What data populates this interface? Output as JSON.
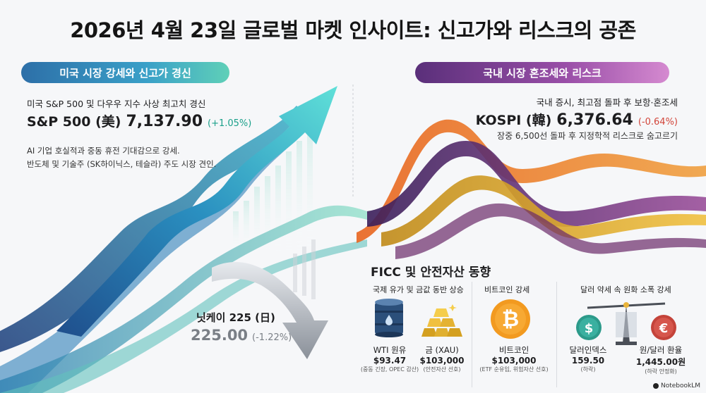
{
  "title": "2026년 4월 23일 글로벌 마켓 인사이트: 신고가와 리스크의 공존",
  "us": {
    "header": "미국 시장 강세와 신고가 경신",
    "subtitle": "미국 S&P 500 및 다우우 지수 사상 최고치 경신",
    "index_name": "S&P 500 (美)",
    "value": "7,137.90",
    "change": "(+1.05%)",
    "desc_line1": "AI 기업 호실적과 중동 휴전 기대감으로 강세.",
    "desc_line2": "반도체 및 기술주 (SK하이닉스, 테슬라) 주도 시장 견인."
  },
  "kr": {
    "header": "국내 시장 혼조세와 리스크",
    "subtitle": "국내 증시, 최고점 돌파 후 보항·혼조세",
    "index_name": "KOSPI (韓)",
    "value": "6,376.64",
    "change": "(-0.64%)",
    "desc": "장중 6,500선 돌파 후 지정학적 리스크로 숨고르기"
  },
  "nikkei": {
    "index_name": "닛케이 225 (日)",
    "value": "225.00",
    "change": "(-1.22%)"
  },
  "ficc": {
    "title": "FICC 및 안전자산 동향",
    "group1_label": "국제 유가 및 금값 동반 상승",
    "group2_label": "비트코인 강세",
    "group3_label": "달러 약세 속 원화 소폭 강세",
    "oil": {
      "name": "WTI 원유",
      "value": "$93.47",
      "note": "(중동 긴장, OPEC 감산)"
    },
    "gold": {
      "name": "금 (XAU)",
      "value": "$103,000",
      "note": "(안전자산 선호)"
    },
    "btc": {
      "name": "비트코인",
      "value": "$103,000",
      "note": "(ETF 순유입, 위험자산 선호)"
    },
    "dxy": {
      "name": "달러인덱스",
      "value": "159.50",
      "note": "(하락)"
    },
    "krw": {
      "name": "원/달러 환율",
      "value": "1,445.00원",
      "note": "(하락 안정화)"
    }
  },
  "brand": "NotebookLM",
  "colors": {
    "us_accent": "#2d6fa8",
    "kr_accent": "#5a2f7a",
    "up": "#1aa08a",
    "down": "#d2453a"
  },
  "icons": [
    "oil-barrel-icon",
    "gold-bars-icon",
    "bitcoin-icon",
    "dollar-coin-icon",
    "euro-coin-icon",
    "balance-scale-icon"
  ]
}
